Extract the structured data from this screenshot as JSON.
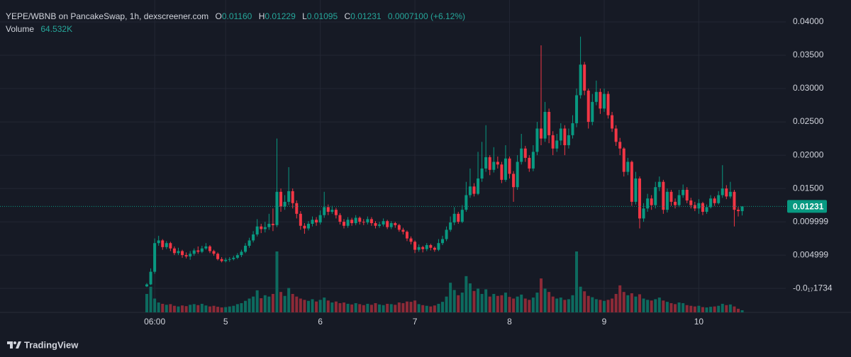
{
  "chart_data": {
    "type": "candlestick",
    "title": "YEPE/WBNB on PancakeSwap, 1h, dexscreener.com",
    "ohlc_legend": [
      {
        "key": "O",
        "text": "0.01160"
      },
      {
        "key": "H",
        "text": "0.01229"
      },
      {
        "key": "L",
        "text": "0.01095"
      },
      {
        "key": "C",
        "text": "0.01231"
      }
    ],
    "change_text": "0.0007100 (+6.12%)",
    "volume_name": "Volume",
    "volume_text": "64.532K",
    "brand": "TradingView",
    "up_color": "#089981",
    "down_color": "#f23645",
    "volume_up_color": "#0d6b5f",
    "volume_down_color": "#8c2a37",
    "grid": true,
    "ylim": [
      -0.0036,
      0.0433
    ],
    "yticks": [
      {
        "value": 0.04,
        "label": "0.04000"
      },
      {
        "value": 0.035,
        "label": "0.03500"
      },
      {
        "value": 0.03,
        "label": "0.03000"
      },
      {
        "value": 0.025,
        "label": "0.02500"
      },
      {
        "value": 0.02,
        "label": "0.02000"
      },
      {
        "value": 0.015,
        "label": "0.01500"
      },
      0.009999,
      0.004999,
      {
        "value": -1.734e-18,
        "label": "-0.0₁₇1734"
      }
    ],
    "volume_ylim": [
      0,
      2000000
    ],
    "last_price": 0.01231,
    "categories": [
      null,
      null,
      "06:00",
      null,
      null,
      null,
      null,
      null,
      null,
      null,
      null,
      null,
      null,
      null,
      null,
      null,
      null,
      null,
      null,
      null,
      "5",
      null,
      null,
      null,
      null,
      null,
      null,
      null,
      null,
      null,
      null,
      null,
      null,
      null,
      null,
      null,
      null,
      null,
      null,
      null,
      null,
      null,
      null,
      null,
      "6",
      null,
      null,
      null,
      null,
      null,
      null,
      null,
      null,
      null,
      null,
      null,
      null,
      null,
      null,
      null,
      null,
      null,
      null,
      null,
      null,
      null,
      null,
      null,
      "7",
      null,
      null,
      null,
      null,
      null,
      null,
      null,
      null,
      null,
      null,
      null,
      null,
      null,
      null,
      null,
      null,
      null,
      null,
      null,
      null,
      null,
      null,
      null,
      "8",
      null,
      null,
      null,
      null,
      null,
      null,
      null,
      null,
      null,
      null,
      null,
      null,
      null,
      null,
      null,
      null,
      null,
      null,
      null,
      null,
      null,
      null,
      null,
      "9",
      null,
      null,
      null,
      null,
      null,
      null,
      null,
      null,
      null,
      null,
      null,
      null,
      null,
      null,
      null,
      null,
      null,
      null,
      null,
      null,
      null,
      null,
      null,
      "10",
      null,
      null,
      null,
      null,
      null,
      null,
      null,
      null,
      null,
      null,
      null
    ],
    "open": [
      0.0003,
      0.0006,
      0.0025,
      0.0068,
      0.0072,
      0.0062,
      0.0068,
      0.006,
      0.0053,
      0.0056,
      0.005,
      0.0048,
      0.0052,
      0.0057,
      0.0055,
      0.006,
      0.0063,
      0.0056,
      0.0052,
      0.0044,
      0.0041,
      0.0043,
      0.0044,
      0.0046,
      0.005,
      0.0055,
      0.0064,
      0.0072,
      0.0081,
      0.0093,
      0.0089,
      0.0092,
      0.0097,
      0.0095,
      0.0145,
      0.0123,
      0.013,
      0.0146,
      0.0128,
      0.0112,
      0.0094,
      0.009,
      0.0097,
      0.0103,
      0.0099,
      0.011,
      0.0122,
      0.0115,
      0.0118,
      0.011,
      0.01,
      0.0094,
      0.0103,
      0.0098,
      0.0106,
      0.01,
      0.0099,
      0.0104,
      0.0098,
      0.0094,
      0.0096,
      0.0101,
      0.0092,
      0.0098,
      0.0095,
      0.0088,
      0.0085,
      0.0075,
      0.007,
      0.0058,
      0.0062,
      0.0059,
      0.0065,
      0.0061,
      0.0058,
      0.0068,
      0.0074,
      0.0088,
      0.0099,
      0.0112,
      0.01,
      0.0118,
      0.014,
      0.0153,
      0.0142,
      0.0165,
      0.018,
      0.0197,
      0.0178,
      0.019,
      0.0186,
      0.0163,
      0.0195,
      0.0172,
      0.0152,
      0.019,
      0.021,
      0.0196,
      0.018,
      0.0205,
      0.024,
      0.0225,
      0.0265,
      0.023,
      0.021,
      0.0222,
      0.024,
      0.0215,
      0.023,
      0.0248,
      0.029,
      0.0336,
      0.0297,
      0.025,
      0.028,
      0.0295,
      0.027,
      0.0292,
      0.026,
      0.024,
      0.022,
      0.021,
      0.0175,
      0.019,
      0.013,
      0.0165,
      0.0105,
      0.012,
      0.0135,
      0.0125,
      0.0152,
      0.016,
      0.0118,
      0.0145,
      0.013,
      0.0125,
      0.014,
      0.0148,
      0.0132,
      0.0125,
      0.012,
      0.0128,
      0.0115,
      0.0122,
      0.0135,
      0.0128,
      0.014,
      0.015,
      0.0138,
      0.0145,
      0.0118,
      0.0116
    ],
    "high": [
      0.0008,
      0.003,
      0.0075,
      0.0079,
      0.0074,
      0.0071,
      0.007,
      0.0063,
      0.0061,
      0.0058,
      0.0054,
      0.0056,
      0.006,
      0.0063,
      0.0064,
      0.0068,
      0.0065,
      0.0058,
      0.0054,
      0.0047,
      0.0046,
      0.0047,
      0.0049,
      0.0053,
      0.0058,
      0.0068,
      0.0076,
      0.0086,
      0.0104,
      0.0097,
      0.01,
      0.0112,
      0.012,
      0.0225,
      0.015,
      0.014,
      0.0182,
      0.015,
      0.0132,
      0.0116,
      0.0098,
      0.0101,
      0.0108,
      0.0107,
      0.0117,
      0.0145,
      0.0126,
      0.0124,
      0.0121,
      0.0113,
      0.0104,
      0.0107,
      0.0106,
      0.011,
      0.0108,
      0.0104,
      0.0108,
      0.0107,
      0.0101,
      0.01,
      0.0105,
      0.0103,
      0.0101,
      0.01,
      0.0097,
      0.0091,
      0.0087,
      0.0078,
      0.0072,
      0.0066,
      0.0064,
      0.0068,
      0.0067,
      0.0063,
      0.0074,
      0.0079,
      0.0093,
      0.0108,
      0.0122,
      0.0115,
      0.0125,
      0.016,
      0.018,
      0.0158,
      0.0205,
      0.022,
      0.0245,
      0.02,
      0.0212,
      0.0198,
      0.019,
      0.0215,
      0.0198,
      0.0176,
      0.02,
      0.0232,
      0.0214,
      0.02,
      0.0215,
      0.025,
      0.0365,
      0.028,
      0.027,
      0.0236,
      0.0232,
      0.0248,
      0.0245,
      0.024,
      0.026,
      0.03,
      0.0378,
      0.034,
      0.03,
      0.0292,
      0.0312,
      0.03,
      0.03,
      0.0296,
      0.0265,
      0.0245,
      0.0226,
      0.0212,
      0.0196,
      0.0192,
      0.0175,
      0.0168,
      0.0128,
      0.0142,
      0.014,
      0.016,
      0.0168,
      0.0163,
      0.015,
      0.0148,
      0.0135,
      0.0148,
      0.0156,
      0.0152,
      0.0136,
      0.013,
      0.0134,
      0.013,
      0.0126,
      0.014,
      0.0138,
      0.0146,
      0.0185,
      0.0155,
      0.016,
      0.0148,
      0.0122,
      0.01229
    ],
    "low": [
      0.0002,
      0.0005,
      0.0022,
      0.0064,
      0.0058,
      0.0059,
      0.0056,
      0.005,
      0.005,
      0.0046,
      0.0045,
      0.0043,
      0.0049,
      0.0052,
      0.0053,
      0.0058,
      0.0053,
      0.0049,
      0.0042,
      0.0039,
      0.0039,
      0.004,
      0.0042,
      0.0044,
      0.0047,
      0.0053,
      0.0061,
      0.0069,
      0.0078,
      0.0083,
      0.0084,
      0.0088,
      0.0086,
      0.0092,
      0.0115,
      0.0118,
      0.0125,
      0.012,
      0.0105,
      0.0088,
      0.0082,
      0.0087,
      0.0093,
      0.0094,
      0.0096,
      0.0106,
      0.011,
      0.0112,
      0.0105,
      0.0096,
      0.009,
      0.0091,
      0.0094,
      0.0095,
      0.0096,
      0.0095,
      0.0096,
      0.0094,
      0.009,
      0.0091,
      0.0093,
      0.0089,
      0.0089,
      0.0091,
      0.0085,
      0.0081,
      0.0071,
      0.0066,
      0.0053,
      0.0055,
      0.0054,
      0.0056,
      0.0057,
      0.0055,
      0.0056,
      0.0065,
      0.0071,
      0.0085,
      0.0095,
      0.0097,
      0.0098,
      0.0115,
      0.0136,
      0.0138,
      0.014,
      0.016,
      0.0175,
      0.017,
      0.0174,
      0.018,
      0.0158,
      0.016,
      0.0165,
      0.013,
      0.0148,
      0.0186,
      0.019,
      0.0175,
      0.0176,
      0.02,
      0.0215,
      0.022,
      0.0218,
      0.02,
      0.0205,
      0.0215,
      0.02,
      0.021,
      0.0225,
      0.0242,
      0.0285,
      0.029,
      0.024,
      0.0245,
      0.0275,
      0.0262,
      0.0265,
      0.0255,
      0.0235,
      0.0214,
      0.02,
      0.0168,
      0.017,
      0.0124,
      0.0126,
      0.009,
      0.01,
      0.0115,
      0.0118,
      0.012,
      0.0146,
      0.0112,
      0.0114,
      0.0124,
      0.012,
      0.0122,
      0.0136,
      0.0128,
      0.012,
      0.0116,
      0.0112,
      0.011,
      0.0112,
      0.012,
      0.0124,
      0.0126,
      0.0136,
      0.0134,
      0.0135,
      0.0093,
      0.0108,
      0.01095
    ],
    "close": [
      0.0006,
      0.0025,
      0.0068,
      0.0072,
      0.0062,
      0.0068,
      0.006,
      0.0053,
      0.0056,
      0.005,
      0.0048,
      0.0052,
      0.0057,
      0.0055,
      0.006,
      0.0063,
      0.0056,
      0.0052,
      0.0044,
      0.0041,
      0.0043,
      0.0044,
      0.0046,
      0.005,
      0.0055,
      0.0064,
      0.0072,
      0.0081,
      0.0093,
      0.0089,
      0.0092,
      0.0097,
      0.0095,
      0.0145,
      0.0123,
      0.013,
      0.0146,
      0.0128,
      0.0112,
      0.0094,
      0.009,
      0.0097,
      0.0103,
      0.0099,
      0.011,
      0.0122,
      0.0115,
      0.0118,
      0.011,
      0.01,
      0.0094,
      0.0103,
      0.0098,
      0.0106,
      0.01,
      0.0099,
      0.0104,
      0.0098,
      0.0094,
      0.0096,
      0.0101,
      0.0092,
      0.0098,
      0.0095,
      0.0088,
      0.0085,
      0.0075,
      0.007,
      0.0058,
      0.0062,
      0.0059,
      0.0065,
      0.0061,
      0.0058,
      0.0068,
      0.0074,
      0.0088,
      0.0099,
      0.0112,
      0.01,
      0.0118,
      0.014,
      0.0153,
      0.0142,
      0.0165,
      0.018,
      0.0197,
      0.0178,
      0.019,
      0.0186,
      0.0163,
      0.0195,
      0.0172,
      0.0152,
      0.019,
      0.021,
      0.0196,
      0.018,
      0.0205,
      0.024,
      0.0225,
      0.0265,
      0.023,
      0.021,
      0.0222,
      0.024,
      0.0215,
      0.023,
      0.0248,
      0.029,
      0.0336,
      0.0297,
      0.025,
      0.028,
      0.0295,
      0.027,
      0.0292,
      0.026,
      0.024,
      0.022,
      0.021,
      0.0175,
      0.019,
      0.013,
      0.0165,
      0.0105,
      0.012,
      0.0135,
      0.0125,
      0.0152,
      0.016,
      0.0118,
      0.0145,
      0.013,
      0.0125,
      0.014,
      0.0148,
      0.0132,
      0.0125,
      0.012,
      0.0128,
      0.0115,
      0.0122,
      0.0135,
      0.0128,
      0.014,
      0.015,
      0.0138,
      0.0145,
      0.0118,
      0.0116,
      0.01231
    ],
    "volume": [
      560000,
      780000,
      420000,
      300000,
      260000,
      230000,
      250000,
      200000,
      180000,
      210000,
      190000,
      230000,
      250000,
      220000,
      260000,
      210000,
      180000,
      200000,
      170000,
      150000,
      160000,
      180000,
      200000,
      250000,
      280000,
      350000,
      420000,
      480000,
      670000,
      430000,
      520000,
      480000,
      560000,
      1850000,
      620000,
      500000,
      740000,
      560000,
      480000,
      420000,
      380000,
      350000,
      400000,
      330000,
      380000,
      450000,
      360000,
      300000,
      330000,
      280000,
      300000,
      260000,
      240000,
      280000,
      250000,
      220000,
      260000,
      230000,
      280000,
      240000,
      220000,
      260000,
      250000,
      230000,
      300000,
      280000,
      330000,
      320000,
      360000,
      250000,
      220000,
      200000,
      180000,
      210000,
      260000,
      320000,
      480000,
      900000,
      680000,
      520000,
      600000,
      1100000,
      880000,
      650000,
      720000,
      560000,
      700000,
      480000,
      560000,
      500000,
      520000,
      600000,
      470000,
      420000,
      480000,
      540000,
      420000,
      380000,
      450000,
      600000,
      1030000,
      720000,
      620000,
      480000,
      420000,
      450000,
      380000,
      400000,
      520000,
      1850000,
      780000,
      640000,
      500000,
      460000,
      400000,
      380000,
      350000,
      380000,
      420000,
      560000,
      820000,
      620000,
      520000,
      580000,
      480000,
      550000,
      420000,
      380000,
      360000,
      400000,
      450000,
      360000,
      320000,
      280000,
      250000,
      300000,
      280000,
      220000,
      200000,
      180000,
      200000,
      160000,
      150000,
      170000,
      180000,
      200000,
      260000,
      220000,
      240000,
      180000,
      110000,
      64532
    ]
  }
}
